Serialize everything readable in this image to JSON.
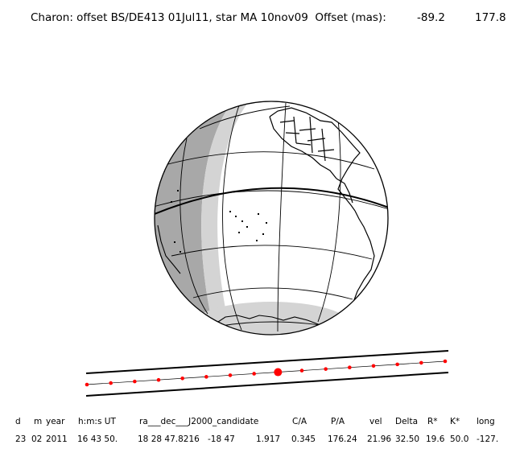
{
  "title": {
    "main": "Charon: offset BS/DE413 01Jul11, star MA 10nov09  Offset (mas):",
    "offset_x": "-89.2",
    "offset_y": "177.8"
  },
  "table": {
    "headers": {
      "d": "d",
      "m": "m",
      "year": "year",
      "hms": "h:m:s UT",
      "radec": "ra___dec___J2000_candidate",
      "ca": "C/A",
      "pa": "P/A",
      "vel": "vel",
      "delta": "Delta",
      "rstar": "R*",
      "kstar": "K*",
      "long": "long"
    },
    "values": {
      "d": "23",
      "m": "02",
      "year": "2011",
      "hms": "16 43 50.",
      "ra": "18 28 47.8216",
      "dec": "-18 47",
      "v1": "1.917",
      "ca": "0.345",
      "pa": "176.24",
      "vel": "21.96",
      "delta": "32.50",
      "rstar": "19.6",
      "kstar": "50.0",
      "long": "-127."
    }
  },
  "track": {
    "point_count": 16,
    "closest_index": 8,
    "point_color": "#ff0000",
    "line_color": "#000000"
  },
  "globe": {
    "night_color": "#a8a8a8",
    "twilight_color": "#d4d4d4",
    "day_color": "#ffffff",
    "outline_color": "#000000"
  }
}
